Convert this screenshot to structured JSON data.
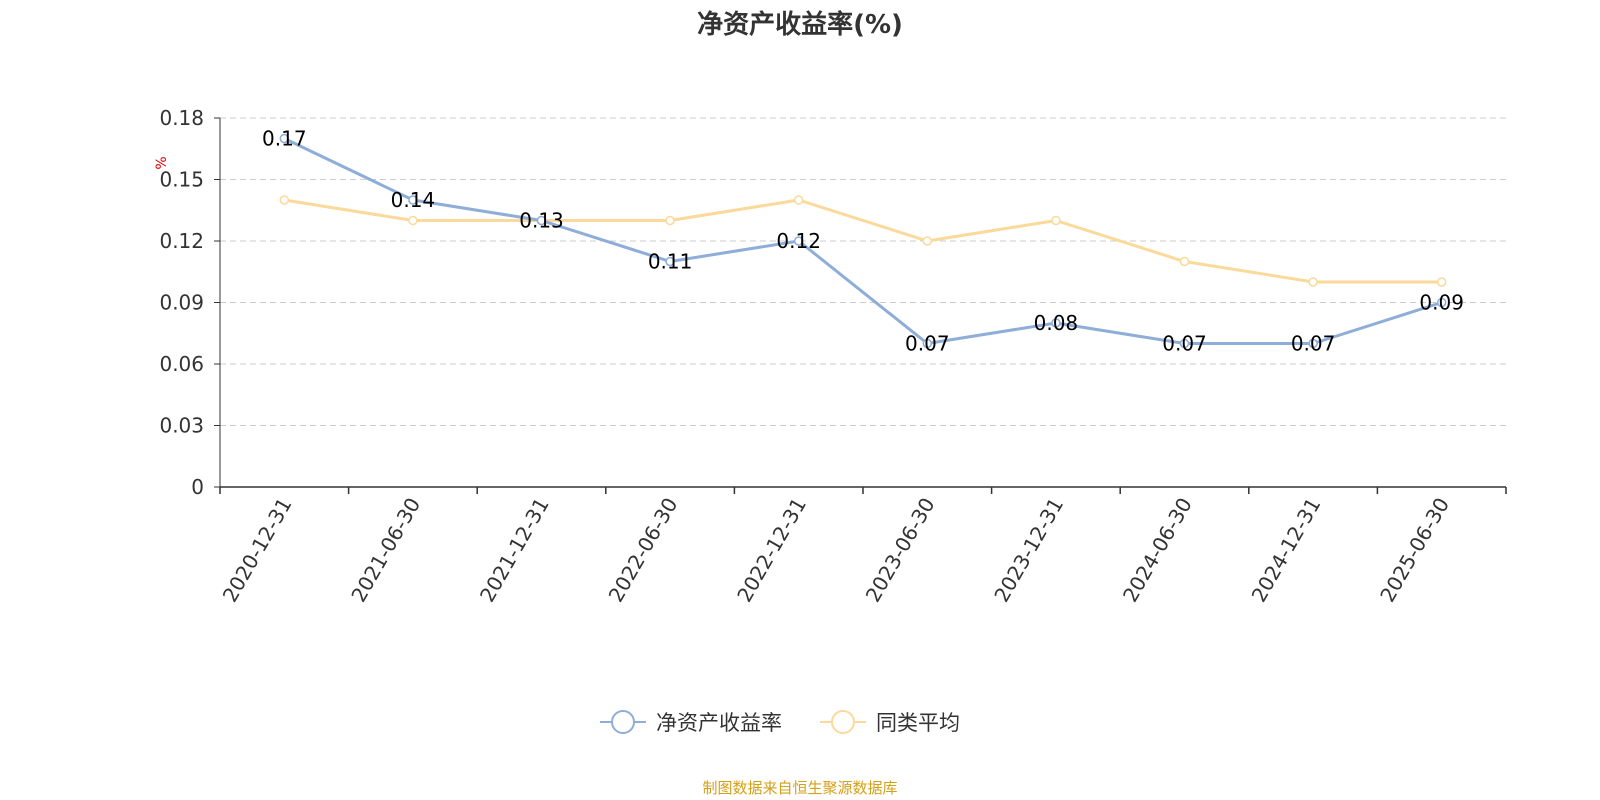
{
  "chart_data": {
    "type": "line",
    "title": "净资产收益率(%)",
    "ylabel": "%",
    "xlabel": "",
    "categories": [
      "2020-12-31",
      "2021-06-30",
      "2021-12-31",
      "2022-06-30",
      "2022-12-31",
      "2023-06-30",
      "2023-12-31",
      "2024-06-30",
      "2024-12-31",
      "2025-06-30"
    ],
    "yticks": [
      "0",
      "0.03",
      "0.06",
      "0.09",
      "0.12",
      "0.15",
      "0.18"
    ],
    "ylim": [
      0,
      0.18
    ],
    "grid": true,
    "legend_position": "bottom-center",
    "series": [
      {
        "name": "净资产收益率",
        "values": [
          0.17,
          0.14,
          0.13,
          0.11,
          0.12,
          0.07,
          0.08,
          0.07,
          0.07,
          0.09
        ],
        "labels": [
          "0.17",
          "0.14",
          "0.13",
          "0.11",
          "0.12",
          "0.07",
          "0.08",
          "0.07",
          "0.07",
          "0.09"
        ],
        "color": "#8eadd8"
      },
      {
        "name": "同类平均",
        "values": [
          0.14,
          0.13,
          0.13,
          0.13,
          0.14,
          0.12,
          0.13,
          0.11,
          0.1,
          0.1
        ],
        "color": "#fbd99a"
      }
    ]
  },
  "source_note": "制图数据来自恒生聚源数据库"
}
